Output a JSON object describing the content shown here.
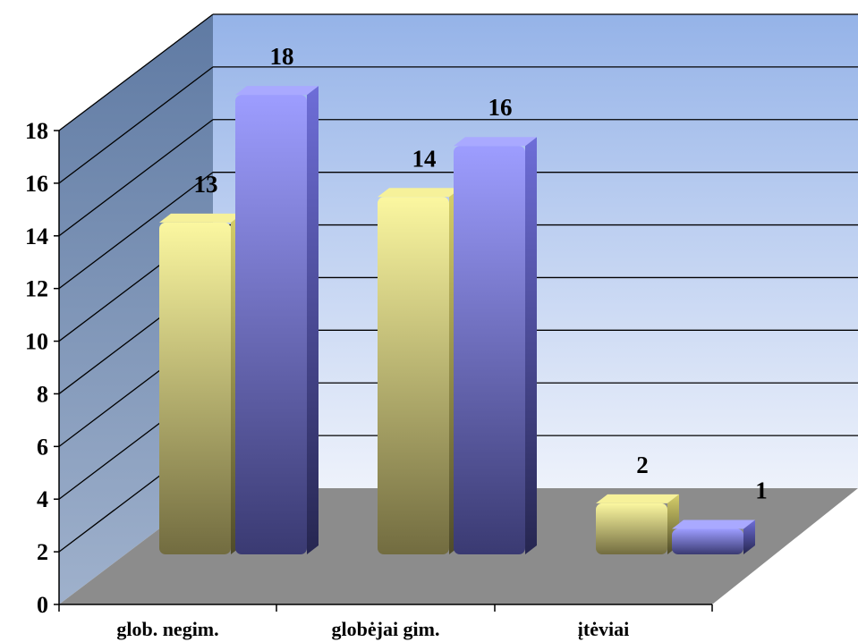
{
  "chart_data": {
    "type": "bar",
    "style": "3d-clustered-column",
    "categories": [
      "glob. negim.",
      "globėjai gim.",
      "įtėviai"
    ],
    "series": [
      {
        "values": [
          13,
          14,
          2
        ],
        "color": "#e6e07a"
      },
      {
        "values": [
          18,
          16,
          1
        ],
        "color": "#8080e6"
      }
    ],
    "ylim": [
      0,
      18
    ],
    "yticks": [
      "0",
      "2",
      "4",
      "6",
      "8",
      "10",
      "12",
      "14",
      "16",
      "18"
    ],
    "data_labels": [
      [
        "13",
        "14",
        "2"
      ],
      [
        "18",
        "16",
        "1"
      ]
    ],
    "grid": true,
    "legend": "none",
    "colors": {
      "back_wall_top": "#95b3e8",
      "back_wall_bottom": "#eef2fb",
      "side_wall": "#6e86ad",
      "floor": "#8c8c8c"
    }
  }
}
